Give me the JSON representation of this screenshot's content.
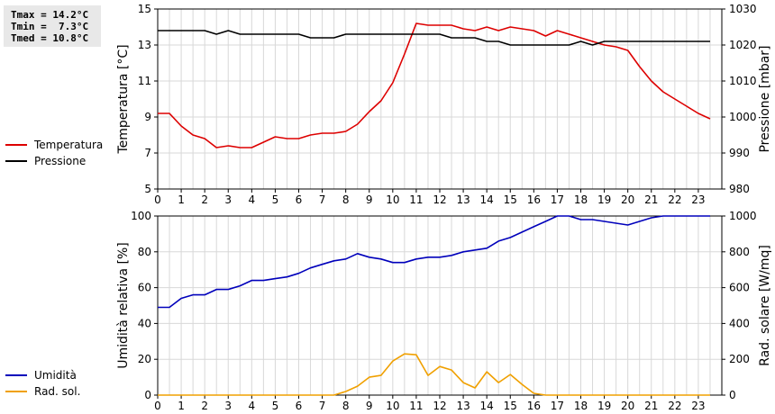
{
  "stats": {
    "tmax": "Tmax = 14.2°C",
    "tmin": "Tmin =  7.3°C",
    "tmed": "Tmed = 10.8°C"
  },
  "colors": {
    "temperature": "#dd0000",
    "pressure": "#000000",
    "humidity": "#0000bb",
    "radiation": "#f0a000"
  },
  "chart_data": [
    {
      "type": "line",
      "xlabel": "",
      "ylabel": "Temperatura [°C]",
      "y2label": "Pressione [mbar]",
      "xlim": [
        0,
        24
      ],
      "ylim": [
        5,
        15
      ],
      "y2lim": [
        980,
        1030
      ],
      "xticks": [
        0,
        1,
        2,
        3,
        4,
        5,
        6,
        7,
        8,
        9,
        10,
        11,
        12,
        13,
        14,
        15,
        16,
        17,
        18,
        19,
        20,
        21,
        22,
        23
      ],
      "yticks": [
        5,
        7,
        9,
        11,
        13,
        15
      ],
      "y2ticks": [
        980,
        990,
        1000,
        1010,
        1020,
        1030
      ],
      "grid": true,
      "legend": "left",
      "series": [
        {
          "name": "Temperatura",
          "axis": "left",
          "color": "#dd0000",
          "x": [
            0,
            0.5,
            1,
            1.5,
            2,
            2.5,
            3,
            3.5,
            4,
            4.5,
            5,
            5.5,
            6,
            6.5,
            7,
            7.5,
            8,
            8.5,
            9,
            9.5,
            10,
            10.5,
            11,
            11.5,
            12,
            12.5,
            13,
            13.5,
            14,
            14.5,
            15,
            15.5,
            16,
            16.5,
            17,
            17.5,
            18,
            18.5,
            19,
            19.5,
            20,
            20.5,
            21,
            21.5,
            22,
            22.5,
            23,
            23.5
          ],
          "y": [
            9.2,
            9.2,
            8.5,
            8.0,
            7.8,
            7.3,
            7.4,
            7.3,
            7.3,
            7.6,
            7.9,
            7.8,
            7.8,
            8.0,
            8.1,
            8.1,
            8.2,
            8.6,
            9.3,
            9.9,
            10.9,
            12.5,
            14.2,
            14.1,
            14.1,
            14.1,
            13.9,
            13.8,
            14.0,
            13.8,
            14.0,
            13.9,
            13.8,
            13.5,
            13.8,
            13.6,
            13.4,
            13.2,
            13.0,
            12.9,
            12.7,
            11.8,
            11.0,
            10.4,
            10.0,
            9.6,
            9.2,
            8.9
          ]
        },
        {
          "name": "Pressione",
          "axis": "right",
          "color": "#000000",
          "x": [
            0,
            0.5,
            1,
            1.5,
            2,
            2.5,
            3,
            3.5,
            4,
            4.5,
            5,
            5.5,
            6,
            6.5,
            7,
            7.5,
            8,
            8.5,
            9,
            9.5,
            10,
            10.5,
            11,
            11.5,
            12,
            12.5,
            13,
            13.5,
            14,
            14.5,
            15,
            15.5,
            16,
            16.5,
            17,
            17.5,
            18,
            18.5,
            19,
            19.5,
            20,
            20.5,
            21,
            21.5,
            22,
            22.5,
            23,
            23.5
          ],
          "y": [
            1024,
            1024,
            1024,
            1024,
            1024,
            1023,
            1024,
            1023,
            1023,
            1023,
            1023,
            1023,
            1023,
            1022,
            1022,
            1022,
            1023,
            1023,
            1023,
            1023,
            1023,
            1023,
            1023,
            1023,
            1023,
            1022,
            1022,
            1022,
            1021,
            1021,
            1020,
            1020,
            1020,
            1020,
            1020,
            1020,
            1021,
            1020,
            1021,
            1021,
            1021,
            1021,
            1021,
            1021,
            1021,
            1021,
            1021,
            1021
          ]
        }
      ]
    },
    {
      "type": "line",
      "xlabel": "",
      "ylabel": "Umidità relativa [%]",
      "y2label": "Rad. solare [W/mq]",
      "xlim": [
        0,
        24
      ],
      "ylim": [
        0,
        100
      ],
      "y2lim": [
        0,
        1000
      ],
      "xticks": [
        0,
        1,
        2,
        3,
        4,
        5,
        6,
        7,
        8,
        9,
        10,
        11,
        12,
        13,
        14,
        15,
        16,
        17,
        18,
        19,
        20,
        21,
        22,
        23
      ],
      "yticks": [
        0,
        20,
        40,
        60,
        80,
        100
      ],
      "y2ticks": [
        0,
        200,
        400,
        600,
        800,
        1000
      ],
      "grid": true,
      "legend": "left",
      "series": [
        {
          "name": "Umidità",
          "axis": "left",
          "color": "#0000bb",
          "x": [
            0,
            0.5,
            1,
            1.5,
            2,
            2.5,
            3,
            3.5,
            4,
            4.5,
            5,
            5.5,
            6,
            6.5,
            7,
            7.5,
            8,
            8.5,
            9,
            9.5,
            10,
            10.5,
            11,
            11.5,
            12,
            12.5,
            13,
            13.5,
            14,
            14.5,
            15,
            15.5,
            16,
            16.5,
            17,
            17.5,
            18,
            18.5,
            19,
            19.5,
            20,
            20.5,
            21,
            21.5,
            22,
            22.5,
            23,
            23.5
          ],
          "y": [
            49,
            49,
            54,
            56,
            56,
            59,
            59,
            61,
            64,
            64,
            65,
            66,
            68,
            71,
            73,
            75,
            76,
            79,
            77,
            76,
            74,
            74,
            76,
            77,
            77,
            78,
            80,
            81,
            82,
            86,
            88,
            91,
            94,
            97,
            100,
            100,
            98,
            98,
            97,
            96,
            95,
            97,
            99,
            100,
            100,
            100,
            100,
            100
          ]
        },
        {
          "name": "Rad. sol.",
          "axis": "right",
          "color": "#f0a000",
          "x": [
            0,
            1,
            2,
            3,
            4,
            5,
            6,
            7,
            7.5,
            8,
            8.5,
            9,
            9.5,
            10,
            10.5,
            11,
            11.5,
            12,
            12.5,
            13,
            13.5,
            14,
            14.5,
            15,
            15.5,
            16,
            16.5,
            17,
            18,
            19,
            20,
            21,
            22,
            23,
            23.5
          ],
          "y": [
            0,
            0,
            0,
            0,
            0,
            0,
            0,
            0,
            0,
            20,
            50,
            100,
            110,
            190,
            230,
            225,
            110,
            160,
            140,
            70,
            40,
            130,
            70,
            115,
            60,
            10,
            0,
            0,
            0,
            0,
            0,
            0,
            0,
            0,
            0
          ]
        }
      ]
    }
  ]
}
